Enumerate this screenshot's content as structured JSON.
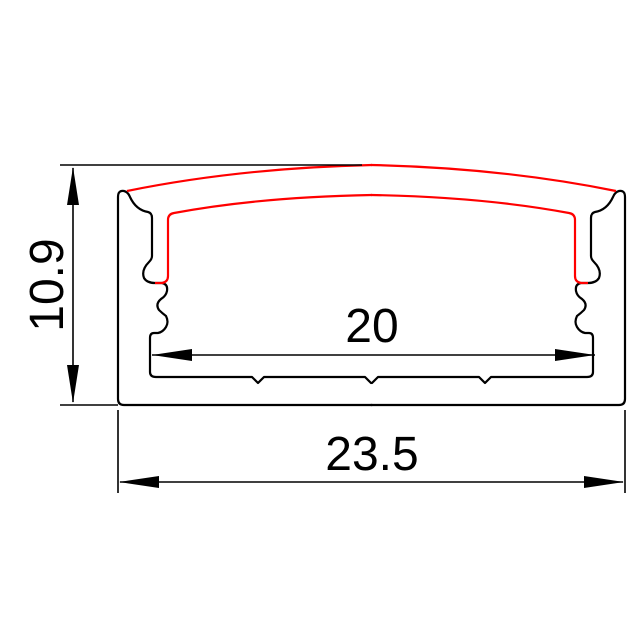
{
  "drawing": {
    "dimensions": {
      "height": "10.9",
      "outer_width": "23.5",
      "inner_width": "20"
    },
    "colors": {
      "profile": "#000000",
      "diffuser": "#ff0000"
    }
  }
}
